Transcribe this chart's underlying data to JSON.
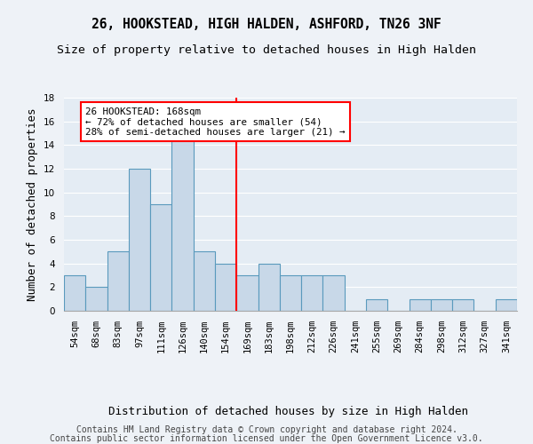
{
  "title": "26, HOOKSTEAD, HIGH HALDEN, ASHFORD, TN26 3NF",
  "subtitle": "Size of property relative to detached houses in High Halden",
  "xlabel": "Distribution of detached houses by size in High Halden",
  "ylabel": "Number of detached properties",
  "categories": [
    "54sqm",
    "68sqm",
    "83sqm",
    "97sqm",
    "111sqm",
    "126sqm",
    "140sqm",
    "154sqm",
    "169sqm",
    "183sqm",
    "198sqm",
    "212sqm",
    "226sqm",
    "241sqm",
    "255sqm",
    "269sqm",
    "284sqm",
    "298sqm",
    "312sqm",
    "327sqm",
    "341sqm"
  ],
  "values": [
    3,
    2,
    5,
    12,
    9,
    15,
    5,
    4,
    3,
    4,
    3,
    3,
    3,
    0,
    1,
    0,
    1,
    1,
    1,
    0,
    1
  ],
  "bar_color": "#c8d8e8",
  "bar_edge_color": "#5a9abd",
  "vline_x": 7.5,
  "vline_color": "red",
  "annotation_text": "26 HOOKSTEAD: 168sqm\n← 72% of detached houses are smaller (54)\n28% of semi-detached houses are larger (21) →",
  "annotation_box_color": "white",
  "annotation_box_edge_color": "red",
  "ylim": [
    0,
    18
  ],
  "yticks": [
    0,
    2,
    4,
    6,
    8,
    10,
    12,
    14,
    16,
    18
  ],
  "footer1": "Contains HM Land Registry data © Crown copyright and database right 2024.",
  "footer2": "Contains public sector information licensed under the Open Government Licence v3.0.",
  "bg_color": "#eef2f7",
  "plot_bg_color": "#e4ecf4",
  "grid_color": "#ffffff",
  "title_fontsize": 10.5,
  "subtitle_fontsize": 9.5,
  "axis_label_fontsize": 9,
  "tick_fontsize": 7.5,
  "footer_fontsize": 7
}
